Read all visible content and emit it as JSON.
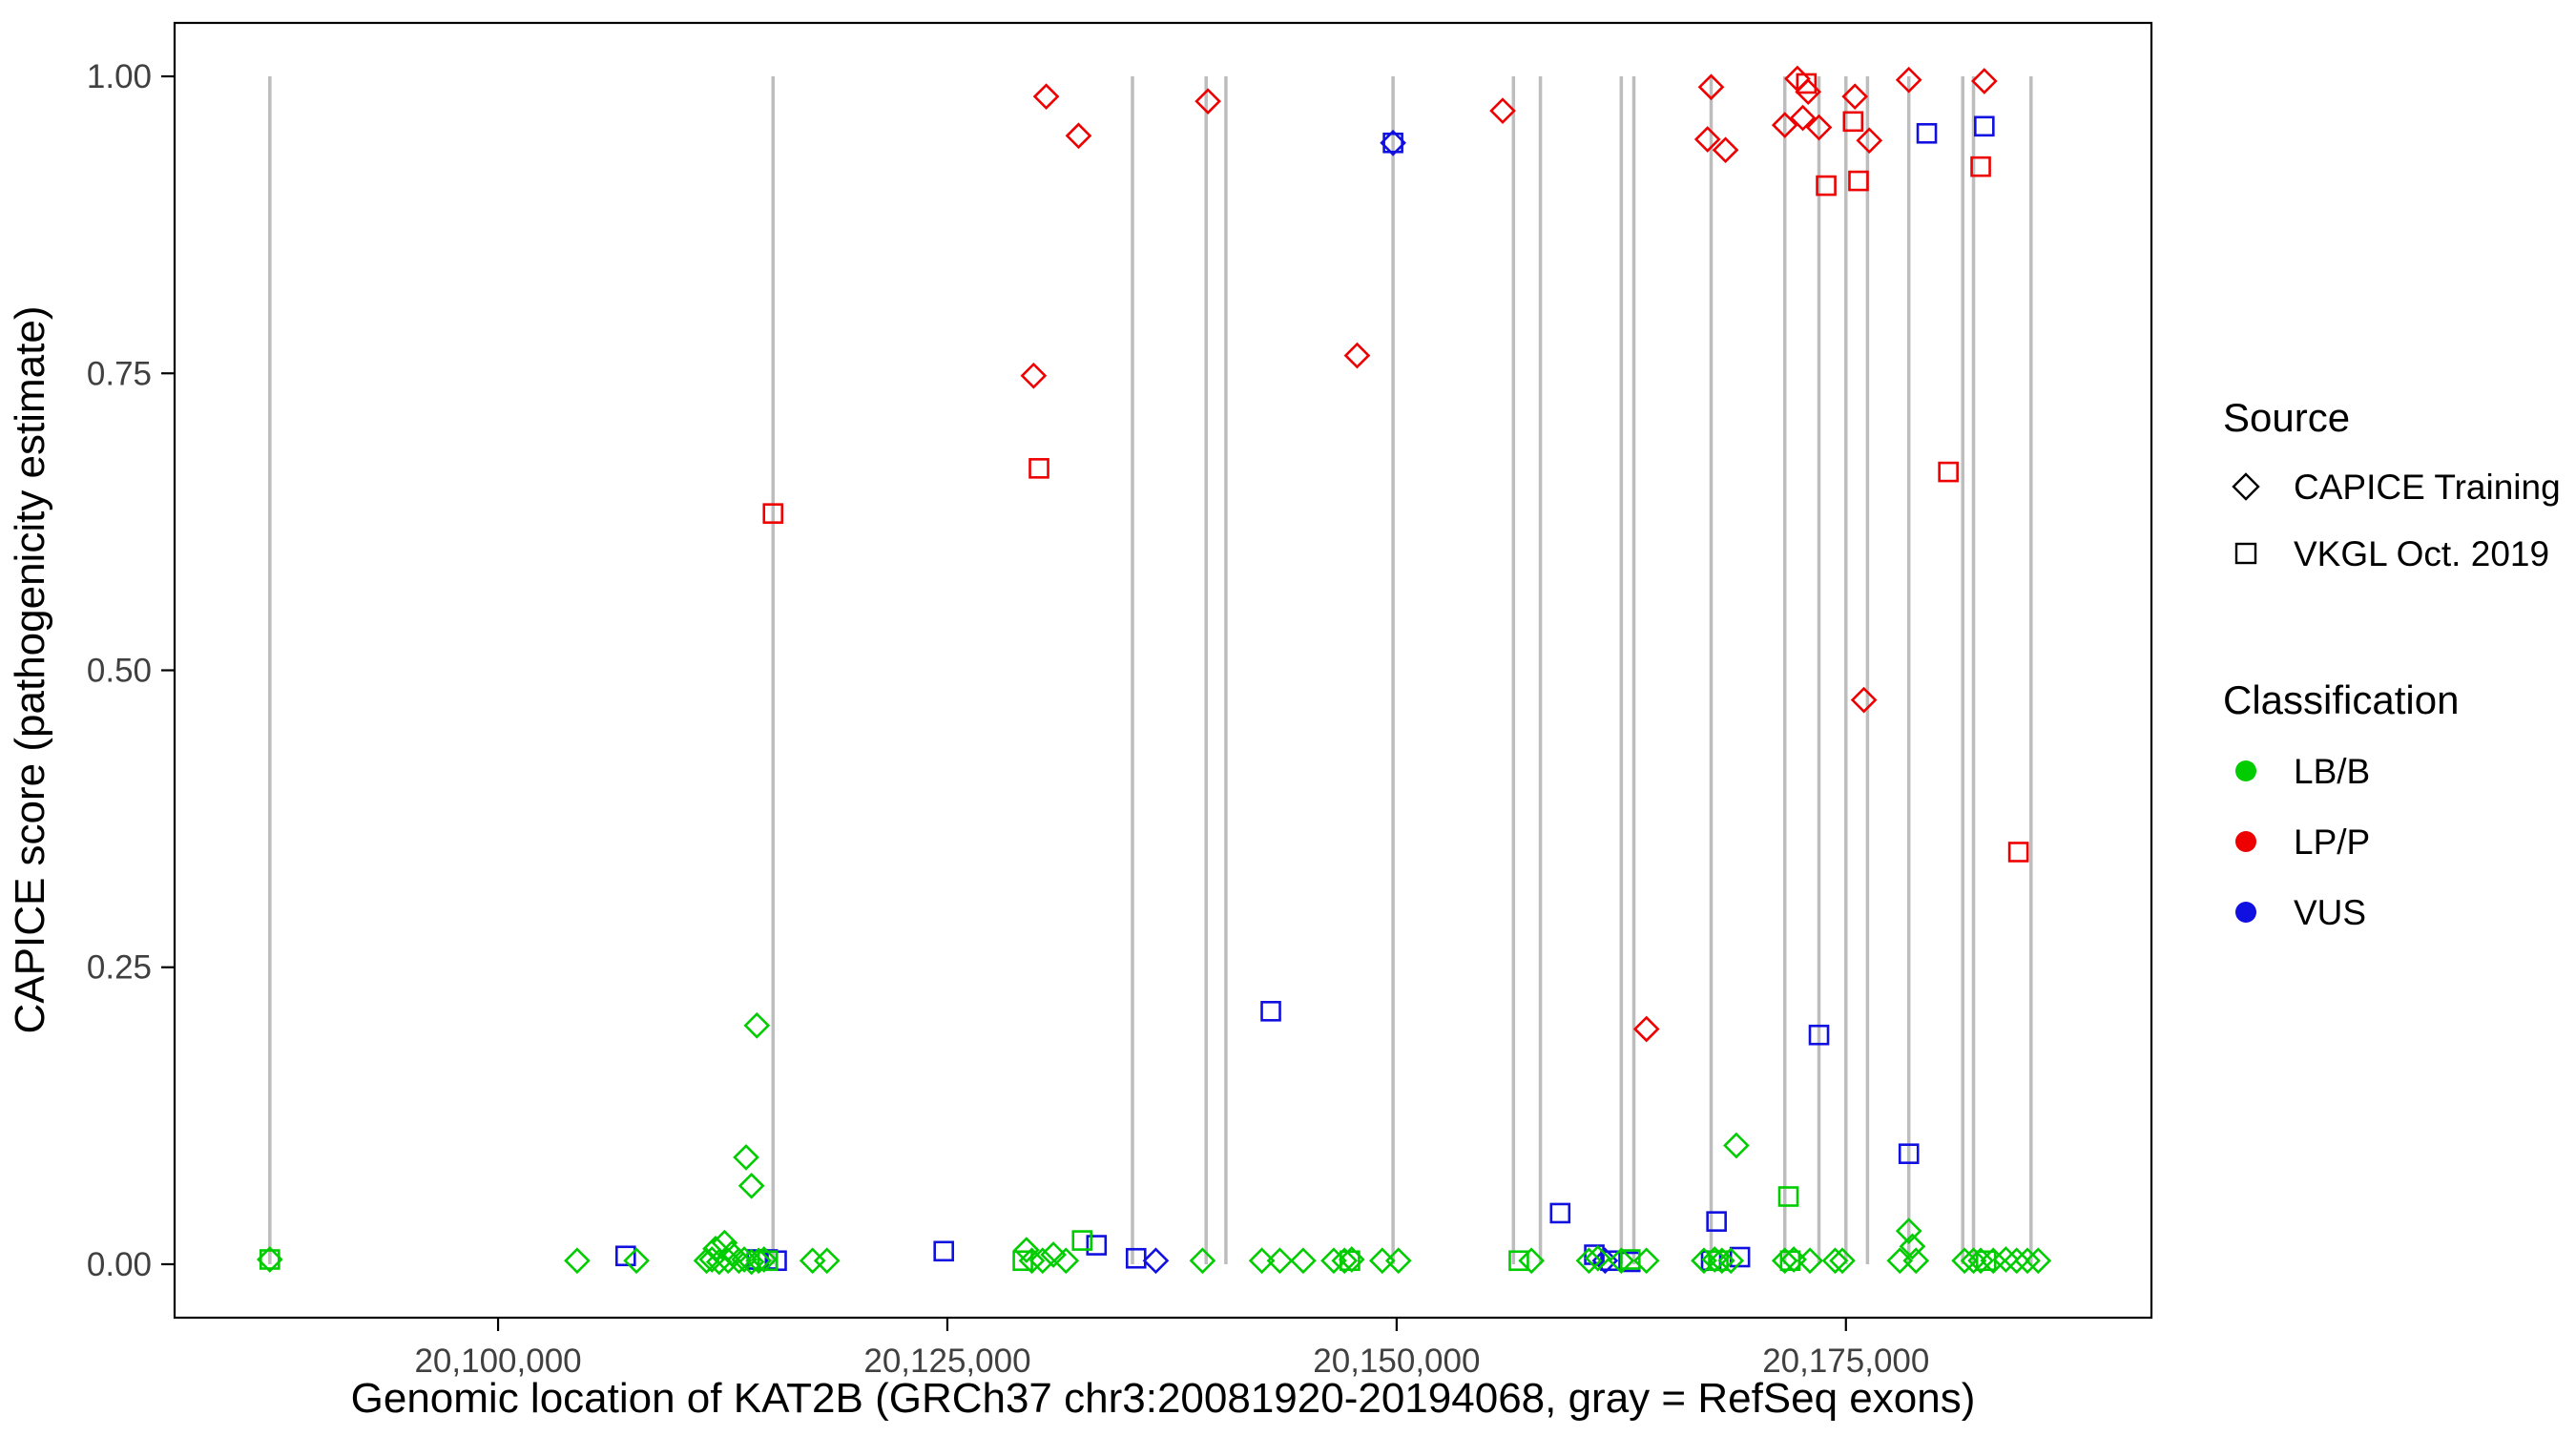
{
  "chart_data": {
    "type": "scatter",
    "title": "",
    "xlabel": "Genomic location of KAT2B (GRCh37 chr3:20081920-20194068, gray = RefSeq exons)",
    "ylabel": "CAPICE score (pathogenicity estimate)",
    "xlim": [
      20082000,
      20192000
    ],
    "ylim": [
      -0.045,
      1.045
    ],
    "grid": "off",
    "x_ticks": [
      {
        "value": 20100000,
        "label": "20,100,000"
      },
      {
        "value": 20125000,
        "label": "20,125,000"
      },
      {
        "value": 20150000,
        "label": "20,150,000"
      },
      {
        "value": 20175000,
        "label": "20,175,000"
      }
    ],
    "y_ticks": [
      {
        "value": 1.0,
        "label": "1.00"
      },
      {
        "value": 0.75,
        "label": "0.75"
      },
      {
        "value": 0.5,
        "label": "0.50"
      },
      {
        "value": 0.25,
        "label": "0.25"
      },
      {
        "value": 0.0,
        "label": "0.00"
      }
    ],
    "exon_color": "#BDBDBD",
    "exons": [
      20087300,
      20115300,
      20135300,
      20139400,
      20140500,
      20149800,
      20156500,
      20158000,
      20162500,
      20163200,
      20167500,
      20171600,
      20173500,
      20175000,
      20176200,
      20178500,
      20181500,
      20182100,
      20185300
    ],
    "classification_colors": {
      "LB/B": "#00CC00",
      "LP/P": "#EE0000",
      "VUS": "#1010E0"
    },
    "source_codes": {
      "C": "CAPICE Training",
      "V": "VKGL Oct. 2019"
    },
    "source_markers": {
      "C": "diamond",
      "V": "square"
    },
    "points_format": [
      "genomic_position",
      "capice_score",
      "classification",
      "source"
    ],
    "legend": {
      "source": {
        "title": "Source",
        "items": [
          {
            "label": "CAPICE Training",
            "marker": "diamond"
          },
          {
            "label": "VKGL Oct. 2019",
            "marker": "square"
          }
        ]
      },
      "classification": {
        "title": "Classification",
        "items": [
          {
            "label": "LB/B",
            "color": "#00CC00"
          },
          {
            "label": "LP/P",
            "color": "#EE0000"
          },
          {
            "label": "VUS",
            "color": "#1010E0"
          }
        ]
      }
    },
    "points": [
      [
        20130500,
        0.983,
        "LP/P",
        "C"
      ],
      [
        20132300,
        0.95,
        "LP/P",
        "C"
      ],
      [
        20129800,
        0.748,
        "LP/P",
        "C"
      ],
      [
        20139500,
        0.979,
        "LP/P",
        "C"
      ],
      [
        20147800,
        0.765,
        "LP/P",
        "C"
      ],
      [
        20155900,
        0.971,
        "LP/P",
        "C"
      ],
      [
        20167500,
        0.991,
        "LP/P",
        "C"
      ],
      [
        20167300,
        0.947,
        "LP/P",
        "C"
      ],
      [
        20168300,
        0.938,
        "LP/P",
        "C"
      ],
      [
        20171600,
        0.959,
        "LP/P",
        "C"
      ],
      [
        20172300,
        0.998,
        "LP/P",
        "C"
      ],
      [
        20172900,
        0.987,
        "LP/P",
        "C"
      ],
      [
        20172600,
        0.965,
        "LP/P",
        "C"
      ],
      [
        20173500,
        0.957,
        "LP/P",
        "C"
      ],
      [
        20175500,
        0.983,
        "LP/P",
        "C"
      ],
      [
        20176300,
        0.946,
        "LP/P",
        "C"
      ],
      [
        20178500,
        0.997,
        "LP/P",
        "C"
      ],
      [
        20176000,
        0.475,
        "LP/P",
        "C"
      ],
      [
        20163900,
        0.198,
        "LP/P",
        "C"
      ],
      [
        20182700,
        0.996,
        "LP/P",
        "C"
      ],
      [
        20115300,
        0.632,
        "LP/P",
        "V"
      ],
      [
        20130100,
        0.67,
        "LP/P",
        "V"
      ],
      [
        20173900,
        0.908,
        "LP/P",
        "V"
      ],
      [
        20175700,
        0.912,
        "LP/P",
        "V"
      ],
      [
        20172800,
        0.994,
        "LP/P",
        "V"
      ],
      [
        20182500,
        0.924,
        "LP/P",
        "V"
      ],
      [
        20180700,
        0.667,
        "LP/P",
        "V"
      ],
      [
        20184600,
        0.347,
        "LP/P",
        "V"
      ],
      [
        20175400,
        0.962,
        "LP/P",
        "V"
      ],
      [
        20149800,
        0.944,
        "VUS",
        "V"
      ],
      [
        20149800,
        0.944,
        "VUS",
        "C"
      ],
      [
        20179500,
        0.952,
        "VUS",
        "V"
      ],
      [
        20182700,
        0.958,
        "VUS",
        "V"
      ],
      [
        20143000,
        0.213,
        "VUS",
        "V"
      ],
      [
        20173500,
        0.193,
        "VUS",
        "V"
      ],
      [
        20178500,
        0.093,
        "VUS",
        "V"
      ],
      [
        20159100,
        0.043,
        "VUS",
        "V"
      ],
      [
        20167800,
        0.036,
        "VUS",
        "V"
      ],
      [
        20133300,
        0.016,
        "VUS",
        "V"
      ],
      [
        20124800,
        0.011,
        "VUS",
        "V"
      ],
      [
        20107100,
        0.007,
        "VUS",
        "V"
      ],
      [
        20114400,
        0.004,
        "VUS",
        "V"
      ],
      [
        20115000,
        0.004,
        "VUS",
        "V"
      ],
      [
        20115500,
        0.003,
        "VUS",
        "V"
      ],
      [
        20161000,
        0.008,
        "VUS",
        "V"
      ],
      [
        20161900,
        0.003,
        "VUS",
        "V"
      ],
      [
        20169100,
        0.006,
        "VUS",
        "V"
      ],
      [
        20135500,
        0.005,
        "VUS",
        "V"
      ],
      [
        20167500,
        0.003,
        "VUS",
        "V"
      ],
      [
        20163000,
        0.002,
        "VUS",
        "V"
      ],
      [
        20136600,
        0.003,
        "VUS",
        "C"
      ],
      [
        20161600,
        0.003,
        "VUS",
        "C"
      ],
      [
        20114400,
        0.201,
        "LB/B",
        "C"
      ],
      [
        20113800,
        0.09,
        "LB/B",
        "C"
      ],
      [
        20114100,
        0.066,
        "LB/B",
        "C"
      ],
      [
        20168900,
        0.1,
        "LB/B",
        "C"
      ],
      [
        20178500,
        0.028,
        "LB/B",
        "C"
      ],
      [
        20178700,
        0.015,
        "LB/B",
        "C"
      ],
      [
        20112600,
        0.018,
        "LB/B",
        "C"
      ],
      [
        20113000,
        0.009,
        "LB/B",
        "C"
      ],
      [
        20112100,
        0.013,
        "LB/B",
        "C"
      ],
      [
        20129400,
        0.012,
        "LB/B",
        "C"
      ],
      [
        20130900,
        0.008,
        "LB/B",
        "C"
      ],
      [
        20171800,
        0.057,
        "LB/B",
        "V"
      ],
      [
        20132500,
        0.02,
        "LB/B",
        "V"
      ],
      [
        20087300,
        0.004,
        "LB/B",
        "C"
      ],
      [
        20104400,
        0.003,
        "LB/B",
        "C"
      ],
      [
        20107700,
        0.003,
        "LB/B",
        "C"
      ],
      [
        20111600,
        0.003,
        "LB/B",
        "C"
      ],
      [
        20111900,
        0.004,
        "LB/B",
        "C"
      ],
      [
        20112300,
        0.002,
        "LB/B",
        "C"
      ],
      [
        20112800,
        0.003,
        "LB/B",
        "C"
      ],
      [
        20113400,
        0.003,
        "LB/B",
        "C"
      ],
      [
        20113700,
        0.004,
        "LB/B",
        "C"
      ],
      [
        20114100,
        0.002,
        "LB/B",
        "C"
      ],
      [
        20114500,
        0.003,
        "LB/B",
        "C"
      ],
      [
        20114800,
        0.004,
        "LB/B",
        "C"
      ],
      [
        20117500,
        0.003,
        "LB/B",
        "C"
      ],
      [
        20118300,
        0.003,
        "LB/B",
        "C"
      ],
      [
        20129700,
        0.003,
        "LB/B",
        "C"
      ],
      [
        20130300,
        0.003,
        "LB/B",
        "C"
      ],
      [
        20131600,
        0.003,
        "LB/B",
        "C"
      ],
      [
        20139200,
        0.003,
        "LB/B",
        "C"
      ],
      [
        20142500,
        0.003,
        "LB/B",
        "C"
      ],
      [
        20143500,
        0.003,
        "LB/B",
        "C"
      ],
      [
        20144800,
        0.003,
        "LB/B",
        "C"
      ],
      [
        20146500,
        0.003,
        "LB/B",
        "C"
      ],
      [
        20147100,
        0.003,
        "LB/B",
        "C"
      ],
      [
        20147500,
        0.004,
        "LB/B",
        "C"
      ],
      [
        20149200,
        0.003,
        "LB/B",
        "C"
      ],
      [
        20150100,
        0.003,
        "LB/B",
        "C"
      ],
      [
        20157500,
        0.003,
        "LB/B",
        "C"
      ],
      [
        20160700,
        0.003,
        "LB/B",
        "C"
      ],
      [
        20161200,
        0.005,
        "LB/B",
        "C"
      ],
      [
        20162500,
        0.003,
        "LB/B",
        "C"
      ],
      [
        20163900,
        0.003,
        "LB/B",
        "C"
      ],
      [
        20167100,
        0.003,
        "LB/B",
        "C"
      ],
      [
        20167700,
        0.004,
        "LB/B",
        "C"
      ],
      [
        20168100,
        0.003,
        "LB/B",
        "C"
      ],
      [
        20168600,
        0.003,
        "LB/B",
        "C"
      ],
      [
        20171600,
        0.003,
        "LB/B",
        "C"
      ],
      [
        20172100,
        0.004,
        "LB/B",
        "C"
      ],
      [
        20173000,
        0.003,
        "LB/B",
        "C"
      ],
      [
        20174400,
        0.003,
        "LB/B",
        "C"
      ],
      [
        20174800,
        0.003,
        "LB/B",
        "C"
      ],
      [
        20178000,
        0.003,
        "LB/B",
        "C"
      ],
      [
        20178900,
        0.003,
        "LB/B",
        "C"
      ],
      [
        20181600,
        0.003,
        "LB/B",
        "C"
      ],
      [
        20182100,
        0.003,
        "LB/B",
        "C"
      ],
      [
        20182500,
        0.003,
        "LB/B",
        "C"
      ],
      [
        20183200,
        0.003,
        "LB/B",
        "C"
      ],
      [
        20183900,
        0.004,
        "LB/B",
        "C"
      ],
      [
        20184500,
        0.003,
        "LB/B",
        "C"
      ],
      [
        20185100,
        0.003,
        "LB/B",
        "C"
      ],
      [
        20185700,
        0.003,
        "LB/B",
        "C"
      ],
      [
        20087300,
        0.004,
        "LB/B",
        "V"
      ],
      [
        20115000,
        0.003,
        "LB/B",
        "V"
      ],
      [
        20129200,
        0.003,
        "LB/B",
        "V"
      ],
      [
        20147400,
        0.003,
        "LB/B",
        "V"
      ],
      [
        20156800,
        0.003,
        "LB/B",
        "V"
      ],
      [
        20163000,
        0.004,
        "LB/B",
        "V"
      ],
      [
        20167900,
        0.003,
        "LB/B",
        "V"
      ],
      [
        20171900,
        0.003,
        "LB/B",
        "V"
      ],
      [
        20182800,
        0.003,
        "LB/B",
        "V"
      ]
    ]
  }
}
